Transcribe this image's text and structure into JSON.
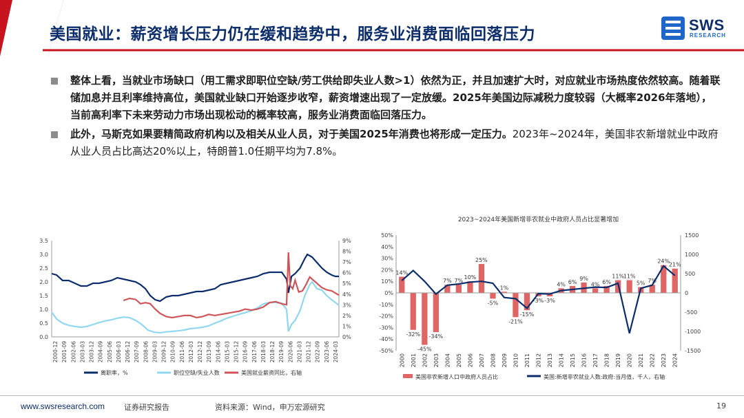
{
  "header": {
    "title": "美国就业：薪资增长压力仍在缓和趋势中，服务业消费面临回落压力",
    "logo_text": "SWS",
    "logo_sub": "RESEARCH",
    "colors": {
      "title": "#0c2d6b",
      "accent_red": "#c8141e"
    }
  },
  "bullets": [
    {
      "bold": "整体上看，当就业市场缺口（用工需求即职位空缺/劳工供给即失业人数>1）依然为正，并且加速扩大时，对应就业市场热度依然较高。随着联储加息并且利率维持高位，美国就业缺口开始逐步收窄，薪资增速出现了一定放缓。2025年美国边际减税力度较弱（大概率2026年落地），当前高利率下未来劳动力市场出现松动的概率较高，服务业消费面临回落压力。",
      "normal": ""
    },
    {
      "bold": "此外，马斯克如果要精简政府机构以及相关从业人员，对于美国2025年消费也将形成一定压力。",
      "normal": "2023年~2024年，美国非农新增就业中政府从业人员占比高达20%以上，特朗普1.0任期平均为7.8%。"
    }
  ],
  "chart_data": [
    {
      "type": "line",
      "title": "",
      "x_ticks": [
        "2000-12",
        "2001-09",
        "2002-06",
        "2003-03",
        "2003-12",
        "2004-09",
        "2005-06",
        "2006-03",
        "2006-12",
        "2007-09",
        "2008-06",
        "2009-03",
        "2009-12",
        "2010-09",
        "2011-06",
        "2012-03",
        "2012-12",
        "2013-09",
        "2014-06",
        "2015-03",
        "2015-12",
        "2016-09",
        "2017-06",
        "2018-03",
        "2018-12",
        "2019-09",
        "2020-06",
        "2021-03",
        "2021-12",
        "2022-09",
        "2023-06",
        "2024-03"
      ],
      "y_left": {
        "min": 0,
        "max": 3.5,
        "step": 0.5,
        "ticks": [
          "0.0",
          "0.5",
          "1.0",
          "1.5",
          "2.0",
          "2.5",
          "3.0",
          "3.5"
        ]
      },
      "y_right": {
        "min": 0,
        "max": 9,
        "step": 1,
        "ticks": [
          "0%",
          "1%",
          "2%",
          "3%",
          "4%",
          "5%",
          "6%",
          "7%",
          "8%",
          "9%"
        ]
      },
      "series": [
        {
          "name": "离职率，%",
          "axis": "left",
          "color": "#0c2d6b",
          "points": [
            [
              2000.9,
              2.3
            ],
            [
              2001.3,
              2.25
            ],
            [
              2001.8,
              2.05
            ],
            [
              2002.3,
              2.05
            ],
            [
              2002.8,
              1.95
            ],
            [
              2003.3,
              1.85
            ],
            [
              2003.8,
              1.85
            ],
            [
              2004.3,
              1.95
            ],
            [
              2004.8,
              1.95
            ],
            [
              2005.3,
              2.0
            ],
            [
              2005.8,
              2.05
            ],
            [
              2006.3,
              2.15
            ],
            [
              2006.8,
              2.1
            ],
            [
              2007.3,
              2.05
            ],
            [
              2007.8,
              2.0
            ],
            [
              2008.2,
              1.9
            ],
            [
              2008.6,
              1.75
            ],
            [
              2009.0,
              1.5
            ],
            [
              2009.4,
              1.35
            ],
            [
              2009.8,
              1.3
            ],
            [
              2010.3,
              1.45
            ],
            [
              2010.8,
              1.5
            ],
            [
              2011.3,
              1.5
            ],
            [
              2011.8,
              1.55
            ],
            [
              2012.3,
              1.6
            ],
            [
              2012.8,
              1.65
            ],
            [
              2013.3,
              1.65
            ],
            [
              2013.8,
              1.7
            ],
            [
              2014.3,
              1.75
            ],
            [
              2014.8,
              1.9
            ],
            [
              2015.3,
              1.95
            ],
            [
              2015.8,
              2.0
            ],
            [
              2016.3,
              2.05
            ],
            [
              2016.8,
              2.1
            ],
            [
              2017.3,
              2.15
            ],
            [
              2017.8,
              2.2
            ],
            [
              2018.3,
              2.3
            ],
            [
              2018.8,
              2.35
            ],
            [
              2019.3,
              2.35
            ],
            [
              2019.8,
              2.35
            ],
            [
              2020.2,
              2.1
            ],
            [
              2020.35,
              1.6
            ],
            [
              2020.6,
              2.2
            ],
            [
              2020.9,
              2.3
            ],
            [
              2021.3,
              2.5
            ],
            [
              2021.7,
              2.85
            ],
            [
              2021.9,
              3.0
            ],
            [
              2022.3,
              2.9
            ],
            [
              2022.7,
              2.7
            ],
            [
              2023.1,
              2.5
            ],
            [
              2023.5,
              2.35
            ],
            [
              2023.9,
              2.25
            ],
            [
              2024.2,
              2.2
            ],
            [
              2024.5,
              2.2
            ]
          ]
        },
        {
          "name": "职位空缺/失业人数",
          "axis": "left",
          "color": "#8fd8ef",
          "points": [
            [
              2000.9,
              0.9
            ],
            [
              2001.3,
              0.65
            ],
            [
              2001.8,
              0.5
            ],
            [
              2002.3,
              0.42
            ],
            [
              2002.8,
              0.38
            ],
            [
              2003.3,
              0.35
            ],
            [
              2003.8,
              0.38
            ],
            [
              2004.3,
              0.45
            ],
            [
              2004.8,
              0.52
            ],
            [
              2005.3,
              0.58
            ],
            [
              2005.8,
              0.62
            ],
            [
              2006.3,
              0.68
            ],
            [
              2006.8,
              0.72
            ],
            [
              2007.3,
              0.7
            ],
            [
              2007.8,
              0.6
            ],
            [
              2008.3,
              0.45
            ],
            [
              2008.8,
              0.25
            ],
            [
              2009.3,
              0.17
            ],
            [
              2009.8,
              0.15
            ],
            [
              2010.3,
              0.18
            ],
            [
              2010.8,
              0.2
            ],
            [
              2011.3,
              0.22
            ],
            [
              2011.8,
              0.25
            ],
            [
              2012.3,
              0.3
            ],
            [
              2012.8,
              0.32
            ],
            [
              2013.3,
              0.35
            ],
            [
              2013.8,
              0.4
            ],
            [
              2014.3,
              0.5
            ],
            [
              2014.8,
              0.58
            ],
            [
              2015.3,
              0.68
            ],
            [
              2015.8,
              0.75
            ],
            [
              2016.3,
              0.82
            ],
            [
              2016.8,
              0.88
            ],
            [
              2017.3,
              0.95
            ],
            [
              2017.8,
              1.05
            ],
            [
              2018.3,
              1.2
            ],
            [
              2018.8,
              1.25
            ],
            [
              2019.3,
              1.25
            ],
            [
              2019.8,
              1.22
            ],
            [
              2020.2,
              1.0
            ],
            [
              2020.35,
              0.2
            ],
            [
              2020.6,
              0.45
            ],
            [
              2020.9,
              0.6
            ],
            [
              2021.3,
              0.95
            ],
            [
              2021.7,
              1.5
            ],
            [
              2022.1,
              1.9
            ],
            [
              2022.3,
              2.0
            ],
            [
              2022.7,
              1.75
            ],
            [
              2023.1,
              1.7
            ],
            [
              2023.5,
              1.5
            ],
            [
              2023.9,
              1.35
            ],
            [
              2024.2,
              1.25
            ],
            [
              2024.5,
              1.15
            ]
          ]
        },
        {
          "name": "美国就业薪资同比，右轴",
          "axis": "right",
          "color": "#d05458",
          "points": [
            [
              2006.8,
              3.4
            ],
            [
              2007.3,
              3.6
            ],
            [
              2007.8,
              3.5
            ],
            [
              2008.2,
              3.1
            ],
            [
              2008.6,
              3.2
            ],
            [
              2009.0,
              3.1
            ],
            [
              2009.4,
              2.6
            ],
            [
              2009.8,
              2.2
            ],
            [
              2010.3,
              1.9
            ],
            [
              2010.8,
              1.8
            ],
            [
              2011.3,
              1.9
            ],
            [
              2011.8,
              2.0
            ],
            [
              2012.3,
              2.0
            ],
            [
              2012.8,
              1.8
            ],
            [
              2013.3,
              1.9
            ],
            [
              2013.8,
              2.1
            ],
            [
              2014.3,
              2.0
            ],
            [
              2014.8,
              2.1
            ],
            [
              2015.3,
              2.2
            ],
            [
              2015.8,
              2.3
            ],
            [
              2016.3,
              2.4
            ],
            [
              2016.8,
              2.6
            ],
            [
              2017.3,
              2.5
            ],
            [
              2017.8,
              2.6
            ],
            [
              2018.3,
              2.8
            ],
            [
              2018.8,
              3.2
            ],
            [
              2019.3,
              3.3
            ],
            [
              2019.8,
              3.1
            ],
            [
              2020.2,
              3.0
            ],
            [
              2020.35,
              7.9
            ],
            [
              2020.5,
              4.8
            ],
            [
              2020.7,
              4.5
            ],
            [
              2020.9,
              5.3
            ],
            [
              2021.2,
              4.2
            ],
            [
              2021.5,
              4.3
            ],
            [
              2021.8,
              4.9
            ],
            [
              2022.1,
              5.6
            ],
            [
              2022.3,
              5.4
            ],
            [
              2022.7,
              5.0
            ],
            [
              2023.1,
              4.6
            ],
            [
              2023.5,
              4.4
            ],
            [
              2023.9,
              4.3
            ],
            [
              2024.2,
              4.1
            ],
            [
              2024.5,
              3.9
            ]
          ]
        }
      ],
      "x_range": [
        2000.9,
        2024.5
      ]
    },
    {
      "type": "bar",
      "title": "2023~2024年美国新增非农就业中政府人员占比显著增加",
      "categories": [
        "2000",
        "2001",
        "2002",
        "2003",
        "2004",
        "2005",
        "2006",
        "2007",
        "2008",
        "2009",
        "2010",
        "2011",
        "2012",
        "2013",
        "2014",
        "2015",
        "2016",
        "2017",
        "2018",
        "2019",
        "2020",
        "2021",
        "2022",
        "2023",
        "2024"
      ],
      "bar_labels": [
        "14%",
        "-32%",
        "-45%",
        "-34%",
        "7%",
        "7%",
        "10%",
        "25%",
        "-5%",
        "1%",
        "-21%",
        "-15%",
        "-3%",
        "-3%",
        "4%",
        "6%",
        "9%",
        "4%",
        "6%",
        "11%",
        "11%",
        "5%",
        "7%",
        "24%",
        "21%"
      ],
      "y_left": {
        "min": -50,
        "max": 50,
        "step": 10,
        "ticks": [
          "-50%",
          "-40%",
          "-30%",
          "-20%",
          "-10%",
          "0%",
          "10%",
          "20%",
          "30%",
          "40%",
          "50%"
        ]
      },
      "y_right": {
        "min": -1500,
        "max": 1500,
        "step": 500,
        "ticks": [
          "-1500",
          "-1000",
          "-500",
          "0",
          "500",
          "1000",
          "1500"
        ]
      },
      "series": [
        {
          "name": "美国非农新增人口中政府人员占比",
          "axis": "left",
          "color": "#e06666",
          "values": [
            14,
            -32,
            -45,
            -34,
            7,
            7,
            10,
            25,
            -5,
            1,
            -21,
            -15,
            -3,
            -3,
            4,
            6,
            9,
            4,
            6,
            11,
            11,
            5,
            7,
            24,
            21
          ]
        },
        {
          "name": "美国:新增非农就业人数:政府:当月值，千人，右轴",
          "axis": "right",
          "color": "#0c2d6b",
          "values": [
            320,
            580,
            300,
            -30,
            200,
            230,
            280,
            300,
            250,
            -120,
            -150,
            -400,
            -20,
            -30,
            60,
            90,
            120,
            150,
            140,
            250,
            -1050,
            120,
            200,
            700,
            450
          ]
        }
      ]
    }
  ],
  "footer": {
    "url": "www.swsresearch.com",
    "report": "证券研究报告",
    "source": "资料来源：Wind，申万宏源研究",
    "page": "19"
  }
}
